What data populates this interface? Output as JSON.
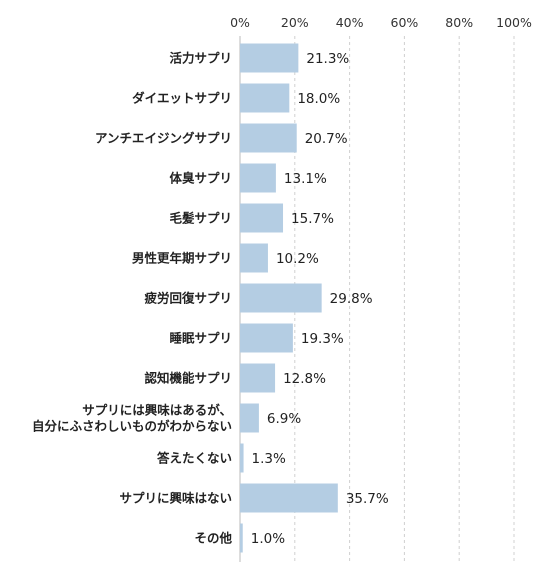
{
  "chart_data": {
    "type": "bar",
    "orientation": "horizontal",
    "categories": [
      [
        "活力サプリ"
      ],
      [
        "ダイエットサプリ"
      ],
      [
        "アンチエイジングサプリ"
      ],
      [
        "体臭サプリ"
      ],
      [
        "毛髪サプリ"
      ],
      [
        "男性更年期サプリ"
      ],
      [
        "疲労回復サプリ"
      ],
      [
        "睡眠サプリ"
      ],
      [
        "認知機能サプリ"
      ],
      [
        "サプリには興味はあるが、",
        "自分にふさわしいものがわからない"
      ],
      [
        "答えたくない"
      ],
      [
        "サプリに興味はない"
      ],
      [
        "その他"
      ]
    ],
    "values": [
      21.3,
      18.0,
      20.7,
      13.1,
      15.7,
      10.2,
      29.8,
      19.3,
      12.8,
      6.9,
      1.3,
      35.7,
      1.0
    ],
    "value_labels": [
      "21.3%",
      "18.0%",
      "20.7%",
      "13.1%",
      "15.7%",
      "10.2%",
      "29.8%",
      "19.3%",
      "12.8%",
      "6.9%",
      "1.3%",
      "35.7%",
      "1.0%"
    ],
    "xlim": [
      0,
      100
    ],
    "xticks": [
      0,
      20,
      40,
      60,
      80,
      100
    ],
    "xtick_labels": [
      "0%",
      "20%",
      "40%",
      "60%",
      "80%",
      "100%"
    ],
    "axis_position": "top",
    "grid": "vertical dashed",
    "bar_color": "#b4cde3",
    "gridline_color": "#d0d0d0"
  }
}
